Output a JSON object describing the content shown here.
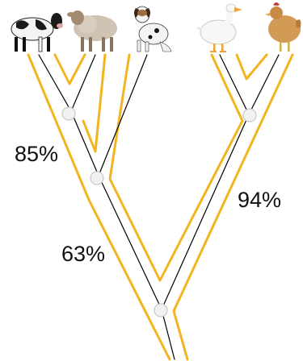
{
  "colors": {
    "tube": "#f2b51f",
    "lineage": "#000000",
    "node": "#f1f1f1",
    "node_stroke": "#c9c9c9",
    "label_text": "#111111"
  },
  "animals": [
    {
      "name": "cow",
      "icon": "cow-icon"
    },
    {
      "name": "sheep",
      "icon": "sheep-icon"
    },
    {
      "name": "dog",
      "icon": "dog-icon"
    },
    {
      "name": "duck",
      "icon": "duck-icon"
    },
    {
      "name": "chicken",
      "icon": "chicken-icon"
    }
  ],
  "labels": {
    "cow_sheep": "85%",
    "mammals": "63%",
    "birds": "94%"
  }
}
